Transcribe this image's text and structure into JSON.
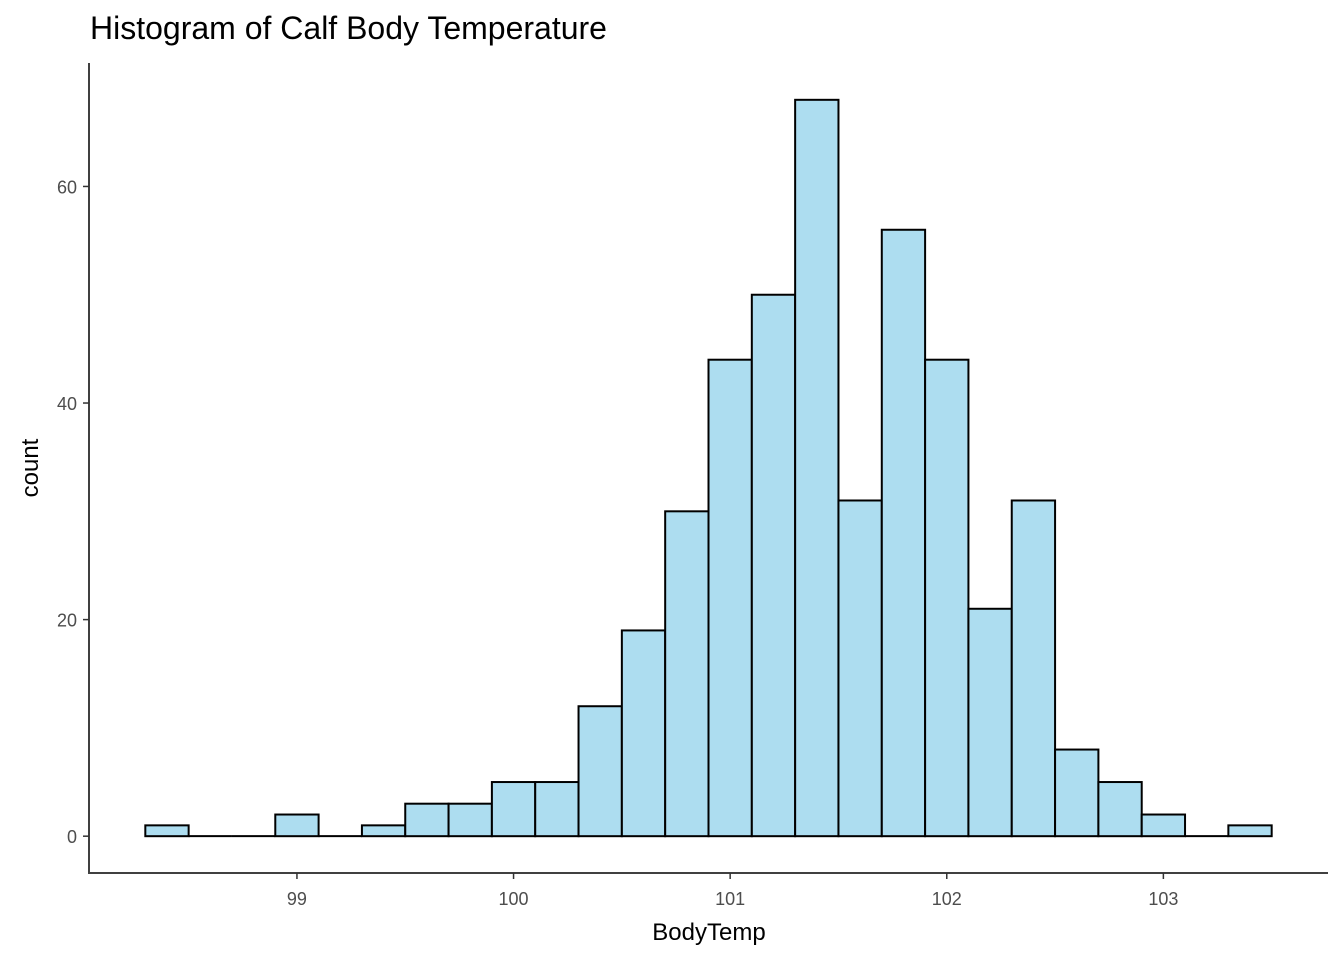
{
  "chart_data": {
    "type": "bar",
    "title": "Histogram of Calf Body Temperature",
    "xlabel": "BodyTemp",
    "ylabel": "count",
    "bin_width": 0.2,
    "bins": [
      {
        "x0": 98.3,
        "x1": 98.5,
        "count": 1
      },
      {
        "x0": 98.5,
        "x1": 98.7,
        "count": 0
      },
      {
        "x0": 98.7,
        "x1": 98.9,
        "count": 0
      },
      {
        "x0": 98.9,
        "x1": 99.1,
        "count": 2
      },
      {
        "x0": 99.1,
        "x1": 99.3,
        "count": 0
      },
      {
        "x0": 99.3,
        "x1": 99.5,
        "count": 1
      },
      {
        "x0": 99.5,
        "x1": 99.7,
        "count": 3
      },
      {
        "x0": 99.7,
        "x1": 99.9,
        "count": 3
      },
      {
        "x0": 99.9,
        "x1": 100.1,
        "count": 5
      },
      {
        "x0": 100.1,
        "x1": 100.3,
        "count": 5
      },
      {
        "x0": 100.3,
        "x1": 100.5,
        "count": 12
      },
      {
        "x0": 100.5,
        "x1": 100.7,
        "count": 19
      },
      {
        "x0": 100.7,
        "x1": 100.9,
        "count": 30
      },
      {
        "x0": 100.9,
        "x1": 101.1,
        "count": 44
      },
      {
        "x0": 101.1,
        "x1": 101.3,
        "count": 50
      },
      {
        "x0": 101.3,
        "x1": 101.5,
        "count": 68
      },
      {
        "x0": 101.5,
        "x1": 101.7,
        "count": 31
      },
      {
        "x0": 101.7,
        "x1": 101.9,
        "count": 56
      },
      {
        "x0": 101.9,
        "x1": 102.1,
        "count": 44
      },
      {
        "x0": 102.1,
        "x1": 102.3,
        "count": 21
      },
      {
        "x0": 102.3,
        "x1": 102.5,
        "count": 31
      },
      {
        "x0": 102.5,
        "x1": 102.7,
        "count": 8
      },
      {
        "x0": 102.7,
        "x1": 102.9,
        "count": 5
      },
      {
        "x0": 102.9,
        "x1": 103.1,
        "count": 2
      },
      {
        "x0": 103.1,
        "x1": 103.3,
        "count": 0
      },
      {
        "x0": 103.3,
        "x1": 103.5,
        "count": 1
      }
    ],
    "xlim": [
      98.04,
      103.76
    ],
    "ylim": [
      -3.4,
      71.4
    ],
    "x_ticks": [
      99,
      100,
      101,
      102,
      103
    ],
    "y_ticks": [
      0,
      20,
      40,
      60
    ],
    "grid": false,
    "colors": {
      "fill": "#ADDDF0",
      "stroke": "#000000",
      "axis": "#000000",
      "tick_label": "#4D4D4D"
    }
  }
}
